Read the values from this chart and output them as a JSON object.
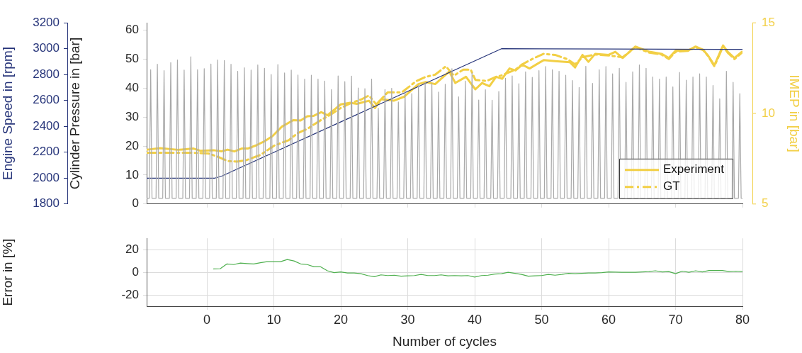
{
  "chart_data": [
    {
      "type": "line",
      "ylabel": "Cylinder Pressure in [bar]",
      "y2label": "IMEP in [bar]",
      "y3label": "Engine Speed in [rpm]",
      "xlim": [
        -9,
        80
      ],
      "xticks": [
        0,
        10,
        20,
        30,
        40,
        50,
        60,
        70,
        80
      ],
      "ylim": [
        0,
        62.5
      ],
      "yticks": [
        0,
        10,
        20,
        30,
        40,
        50,
        60
      ],
      "y2lim": [
        5,
        15
      ],
      "y2ticks": [
        5,
        10,
        15
      ],
      "y3lim": [
        1800,
        3200
      ],
      "y3ticks": [
        1800,
        2000,
        2200,
        2400,
        2600,
        2800,
        3000,
        3200
      ],
      "tick_labels": "y",
      "legend": "bottom right",
      "series": [
        {
          "color": "#a9a9a9",
          "axis": "y",
          "x": [
            -9,
            -8.6,
            -8.4,
            -8.2,
            -7.6,
            -7.4,
            -7.2,
            -6.6,
            -6.4,
            -6.2,
            -5.6,
            -5.4,
            -5.2,
            -4.6,
            -4.4,
            -4.2,
            -3.6,
            -3.4,
            -3.2,
            -2.6,
            -2.4,
            -2.2,
            -1.6,
            -1.4,
            -1.2,
            -0.6,
            -0.4,
            -0.2,
            0.4,
            0.6,
            0.8,
            1.4,
            1.6,
            1.8,
            2.4,
            2.6,
            2.8,
            3.4,
            3.6,
            3.8,
            4.4,
            4.6,
            4.8,
            5.4,
            5.6,
            5.8,
            6.4,
            6.6,
            6.8,
            7.4,
            7.6,
            7.8,
            8.4,
            8.6,
            8.8,
            9.4,
            9.6,
            9.8,
            10.4,
            10.6,
            10.8,
            11.4,
            11.6,
            11.8,
            12.4,
            12.6,
            12.8,
            13.4,
            13.6,
            13.8,
            14.4,
            14.6,
            14.8,
            15.4,
            15.6,
            15.8,
            16.4,
            16.6,
            16.8,
            17.4,
            17.6,
            17.8,
            18.4,
            18.6,
            18.8,
            19.4,
            19.6,
            19.8,
            20.4,
            20.6,
            20.8,
            21.4,
            21.6,
            21.8,
            22.4,
            22.6,
            22.8,
            23.4,
            23.6,
            23.8,
            24.4,
            24.6,
            24.8,
            25.4,
            25.6,
            25.8,
            26.4,
            26.6,
            26.8,
            27.4,
            27.6,
            27.8,
            28.4,
            28.6,
            28.8,
            29.4,
            29.6,
            29.8,
            30.4,
            30.6,
            30.8,
            31.4,
            31.6,
            31.8,
            32.4,
            32.6,
            32.8,
            33.4,
            33.6,
            33.8,
            34.4,
            34.6,
            34.8,
            35.4,
            35.6,
            35.8,
            36.4,
            36.6,
            36.8,
            37.4,
            37.6,
            37.8,
            38.4,
            38.6,
            38.8,
            39.4,
            39.6,
            39.8,
            40.4,
            40.6,
            40.8,
            41.4,
            41.6,
            41.8,
            42.4,
            42.6,
            42.8,
            43.4,
            43.6,
            43.8,
            44.4,
            44.6,
            44.8,
            45.4,
            45.6,
            45.8,
            46.4,
            46.6,
            46.8,
            47.4,
            47.6,
            47.8,
            48.4,
            48.6,
            48.8,
            49.4,
            49.6,
            49.8,
            50.4,
            50.6,
            50.8,
            51.4,
            51.6,
            51.8,
            52.4,
            52.6,
            52.8,
            53.4,
            53.6,
            53.8,
            54.4,
            54.6,
            54.8,
            55.4,
            55.6,
            55.8,
            56.4,
            56.6,
            56.8,
            57.4,
            57.6,
            57.8,
            58.4,
            58.6,
            58.8,
            59.4,
            59.6,
            59.8,
            60.4,
            60.6,
            60.8,
            61.4,
            61.6,
            61.8,
            62.4,
            62.6,
            62.8,
            63.4,
            63.6,
            63.8,
            64.4,
            64.6,
            64.8,
            65.4,
            65.6,
            65.8,
            66.4,
            66.6,
            66.8,
            67.4,
            67.6,
            67.8,
            68.4,
            68.6,
            68.8,
            69.4,
            69.6,
            69.8,
            70.4,
            70.6,
            70.8,
            71.4,
            71.6,
            71.8,
            72.4,
            72.6,
            72.8,
            73.4,
            73.6,
            73.8,
            74.4,
            74.6,
            74.8,
            75.4,
            75.6,
            75.8,
            76.4,
            76.6,
            76.8,
            77.4,
            77.6,
            77.8,
            78.4,
            78.6,
            78.8,
            79.4,
            79.6,
            79.8,
            80
          ],
          "values": [
            2,
            2,
            46.3,
            2,
            2,
            48.2,
            2,
            2,
            46.0,
            2,
            2,
            48.8,
            2,
            2,
            49.7,
            2,
            2,
            46.2,
            2,
            2,
            50.8,
            2,
            2,
            46.3,
            2,
            2,
            46.7,
            2,
            2,
            48.3,
            2,
            2,
            49.7,
            2,
            2,
            49.5,
            2,
            2,
            48.2,
            2,
            2,
            45.8,
            2,
            2,
            47.0,
            2,
            2,
            46.2,
            2,
            2,
            48.0,
            2,
            2,
            46.8,
            2,
            2,
            44.7,
            2,
            2,
            48.1,
            2,
            2,
            45.2,
            2,
            2,
            46.2,
            2,
            2,
            44.5,
            2,
            2,
            43.1,
            2,
            2,
            44.4,
            2,
            2,
            43.1,
            2,
            2,
            42.4,
            2,
            2,
            39.5,
            2,
            2,
            44.2,
            2,
            2,
            42.2,
            2,
            2,
            44.1,
            2,
            2,
            40.0,
            2,
            2,
            39.8,
            2,
            2,
            43.1,
            2,
            2,
            33.0,
            2,
            2,
            39.5,
            2,
            2,
            39.9,
            2,
            2,
            35.2,
            2,
            2,
            38.9,
            2,
            2,
            38.1,
            2,
            2,
            40.9,
            2,
            2,
            42.0,
            2,
            2,
            41.6,
            2,
            2,
            38.6,
            2,
            2,
            41.3,
            2,
            2,
            46.7,
            2,
            2,
            37.0,
            2,
            2,
            42.4,
            2,
            2,
            45.2,
            2,
            2,
            35.9,
            2,
            2,
            39.4,
            2,
            2,
            35.8,
            2,
            2,
            38.8,
            2,
            2,
            43.4,
            2,
            2,
            44.2,
            2,
            2,
            41.5,
            2,
            2,
            45.6,
            2,
            2,
            43.7,
            2,
            2,
            46.0,
            2,
            2,
            47.4,
            2,
            2,
            46.3,
            2,
            2,
            45.8,
            2,
            2,
            44.4,
            2,
            2,
            42.6,
            2,
            2,
            40.2,
            2,
            2,
            47.5,
            2,
            2,
            41.6,
            2,
            2,
            46.3,
            2,
            2,
            47.4,
            2,
            2,
            44.9,
            2,
            2,
            46.8,
            2,
            2,
            42.0,
            2,
            2,
            45.6,
            2,
            2,
            48.0,
            2,
            2,
            46.8,
            2,
            2,
            43.8,
            2,
            2,
            43.1,
            2,
            2,
            43.8,
            2,
            2,
            40.4,
            2,
            2,
            45.4,
            2,
            2,
            42.7,
            2,
            2,
            43.8,
            2,
            2,
            44.9,
            2,
            2,
            43.8,
            2,
            2,
            40.9,
            2,
            2,
            36.3,
            2,
            2,
            45.8,
            2,
            2,
            42.0,
            2,
            2,
            38.1,
            2,
            2
          ]
        },
        {
          "color": "#27357a",
          "axis": "y3",
          "x": [
            -9,
            1.2,
            2.2,
            44,
            60,
            80
          ],
          "values": [
            2000,
            2000,
            2015,
            3000,
            2998,
            2995
          ]
        },
        {
          "name": "Experiment",
          "color": "#f2cf45",
          "axis": "y2",
          "line_style": "solid",
          "x": [
            -8.9,
            -7,
            -4.3,
            -2,
            -1,
            1,
            2.2,
            3.1,
            4.1,
            5.2,
            6.1,
            7.3,
            8.7,
            9.8,
            11.2,
            12.9,
            14,
            15,
            15.9,
            17.1,
            18,
            20,
            21.4,
            22.4,
            24.2,
            25.1,
            26,
            27.9,
            29.5,
            31.6,
            32.7,
            34.1,
            36.2,
            37.1,
            38.7,
            40.1,
            41.1,
            42.2,
            43.2,
            44.1,
            45.2,
            46.1,
            47.1,
            48.2,
            50.3,
            52,
            54.2,
            55,
            56.1,
            57,
            58,
            60,
            61,
            62.1,
            64,
            66.1,
            67.9,
            69,
            70,
            71.8,
            73,
            74.1,
            74.9,
            75.8,
            77.1,
            77.8,
            78.8,
            79.9
          ],
          "values": [
            8.0,
            8.08,
            7.99,
            8.06,
            7.94,
            7.97,
            7.91,
            8.0,
            7.9,
            8.06,
            8.06,
            8.23,
            8.48,
            8.75,
            9.27,
            9.63,
            9.61,
            9.84,
            9.86,
            10.07,
            9.9,
            10.5,
            10.59,
            10.53,
            10.7,
            10.3,
            10.78,
            10.7,
            10.93,
            11.62,
            11.73,
            11.62,
            12.31,
            11.68,
            12.02,
            11.33,
            11.68,
            11.5,
            12.02,
            11.91,
            12.48,
            12.37,
            12.69,
            12.48,
            12.94,
            12.89,
            12.83,
            12.54,
            13.23,
            12.85,
            13.29,
            13.23,
            13.4,
            13.06,
            13.69,
            13.4,
            13.29,
            13.06,
            13.46,
            13.46,
            13.69,
            13.52,
            13.17,
            12.66,
            13.75,
            13.4,
            13.06,
            13.4
          ]
        },
        {
          "name": "GT",
          "color": "#f2cf45",
          "axis": "y2",
          "line_style": "dashdot",
          "x": [
            -8.9,
            -2.6,
            0.2,
            1.7,
            3.1,
            4.5,
            5.9,
            8,
            10.1,
            12.2,
            13.6,
            15,
            17.2,
            18.6,
            20,
            21.4,
            23.1,
            24.2,
            25.3,
            27,
            29.1,
            31.3,
            32.7,
            34.1,
            35.7,
            36.9,
            38.3,
            39.4,
            40.1,
            41.8,
            43.2,
            43.9,
            46.1,
            47.1,
            48.9,
            50.3,
            52,
            53.8,
            55,
            56.1,
            58,
            60,
            62.1,
            64,
            66.1,
            67.9,
            69,
            70,
            71.8,
            73,
            74.1,
            74.9,
            75.8,
            77.1,
            77.8,
            78.8,
            79.9
          ],
          "values": [
            7.83,
            7.83,
            7.79,
            7.6,
            7.37,
            7.34,
            7.42,
            7.71,
            8.23,
            8.52,
            8.92,
            9.15,
            9.67,
            9.96,
            10.3,
            10.55,
            10.78,
            10.99,
            10.5,
            11.16,
            11.16,
            11.79,
            12.02,
            12.14,
            12.6,
            12.08,
            12.42,
            12.42,
            11.85,
            11.79,
            12.02,
            12.08,
            12.42,
            12.71,
            13.06,
            13.29,
            13.23,
            13.0,
            12.71,
            13.1,
            13.25,
            13.2,
            13.1,
            13.65,
            13.35,
            13.25,
            13.0,
            13.4,
            13.45,
            13.65,
            13.5,
            13.15,
            12.6,
            13.7,
            13.35,
            13.0,
            13.35
          ]
        }
      ]
    },
    {
      "type": "line",
      "xlabel": "Number of cycles",
      "ylabel": "Error in [%]",
      "xlim": [
        -9,
        80
      ],
      "xticks": [
        0,
        10,
        20,
        30,
        40,
        50,
        60,
        70,
        80
      ],
      "ylim": [
        -30,
        30
      ],
      "yticks": [
        -20,
        0,
        20
      ],
      "grid": true,
      "series": [
        {
          "color": "#4fb04f",
          "x": [
            1,
            2,
            3,
            4,
            5,
            6,
            7,
            8,
            9,
            10,
            11,
            12,
            13,
            14,
            15,
            16,
            17,
            18,
            19,
            20,
            21,
            22,
            23,
            24,
            25,
            26,
            27,
            28,
            29,
            30,
            31,
            32,
            33,
            34,
            35,
            36,
            37,
            38,
            39,
            40,
            41,
            42,
            43,
            44,
            45,
            46,
            47,
            48,
            49,
            50,
            51,
            52,
            53,
            54,
            55,
            56,
            57,
            58,
            59,
            60,
            61,
            62,
            63,
            64,
            65,
            66,
            67,
            68,
            69,
            70,
            71,
            72,
            73,
            74,
            75,
            76,
            77,
            78,
            79,
            80
          ],
          "values": [
            2.9,
            3.2,
            7.4,
            6.8,
            8.1,
            7.7,
            7.4,
            8.4,
            9.4,
            9.4,
            9.4,
            11.3,
            10.0,
            7.4,
            6.8,
            4.8,
            4.8,
            1.3,
            -0.3,
            0.3,
            -0.6,
            -0.6,
            -1.3,
            -2.9,
            -3.9,
            -2.3,
            -2.9,
            -2.6,
            -3.5,
            -3.2,
            -2.9,
            -1.9,
            -2.9,
            -2.9,
            -2.3,
            -3.2,
            -2.9,
            -3.2,
            -2.9,
            -4.2,
            -2.9,
            -2.6,
            -1.6,
            -1.3,
            0,
            -1.0,
            -1.9,
            -3.5,
            -3.2,
            -2.9,
            -1.9,
            -2.6,
            -1.9,
            -1.0,
            -1.3,
            -1.0,
            -0.6,
            -0.6,
            -0.3,
            0.3,
            0.2,
            0,
            0,
            0,
            0.3,
            0.6,
            1.3,
            0.3,
            0.6,
            -1.3,
            1.0,
            0,
            1.3,
            0.3,
            1.6,
            1.6,
            1.6,
            0.6,
            1.0,
            0.6
          ]
        }
      ]
    }
  ]
}
